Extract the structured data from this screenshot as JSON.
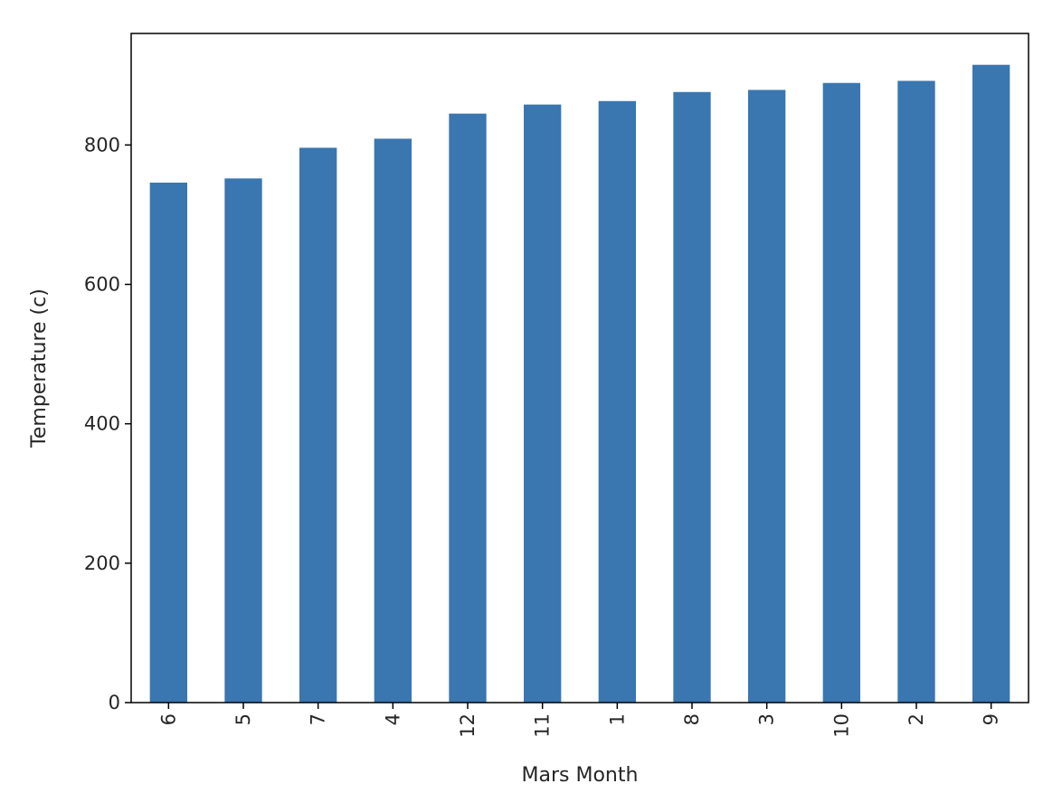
{
  "chart_data": {
    "type": "bar",
    "title": "",
    "xlabel": "Mars Month",
    "ylabel": "Temperature (c)",
    "categories": [
      "6",
      "5",
      "7",
      "4",
      "12",
      "11",
      "1",
      "8",
      "3",
      "10",
      "2",
      "9"
    ],
    "values": [
      746,
      752,
      796,
      809,
      845,
      858,
      863,
      876,
      879,
      889,
      892,
      915
    ],
    "ylim": [
      0,
      960
    ],
    "yticks": [
      0,
      200,
      400,
      600,
      800
    ],
    "ytick_labels": [
      "0",
      "200",
      "400",
      "600",
      "800"
    ],
    "grid": false,
    "legend": "none",
    "bar_color": "#3a76af",
    "axis_color": "#000000"
  }
}
